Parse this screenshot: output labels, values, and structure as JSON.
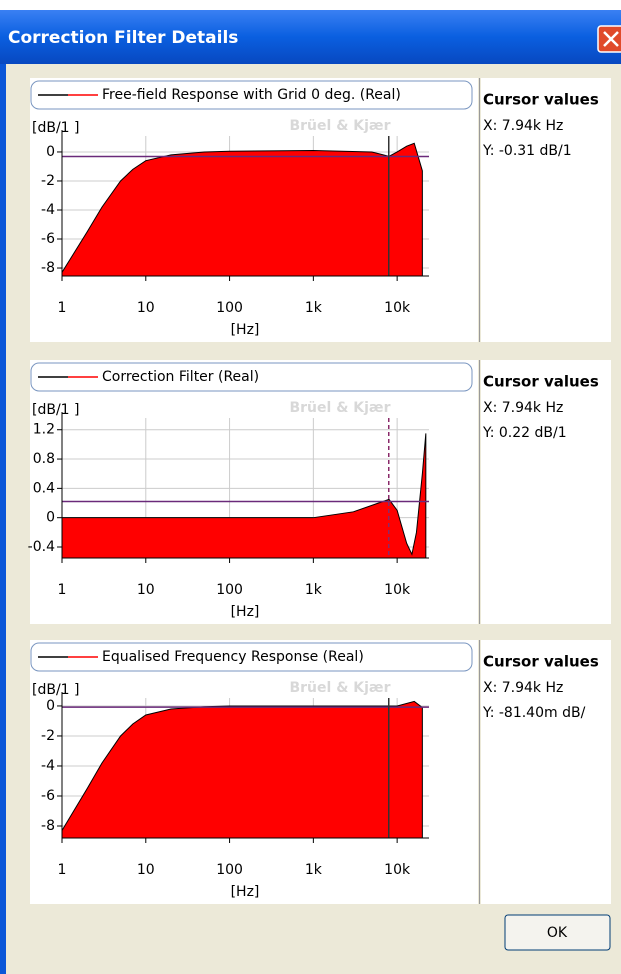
{
  "window": {
    "title": "Correction Filter Details",
    "ok_button": "OK"
  },
  "chart_data": [
    {
      "type": "area",
      "series": [
        {
          "name": "Free-field Response with Grid 0 deg. (Real)",
          "color": "#ff0000",
          "x": [
            1,
            2,
            3,
            5,
            7,
            10,
            20,
            50,
            100,
            1000,
            5000,
            8000,
            10000,
            13000,
            16000,
            20000
          ],
          "values": [
            -8.3,
            -5.5,
            -3.8,
            -2.0,
            -1.2,
            -0.6,
            -0.2,
            0,
            0.05,
            0.1,
            0,
            -0.3,
            0.0,
            0.4,
            0.6,
            -1.3
          ]
        }
      ],
      "ylabel": "[dB/1 ]",
      "xlabel": "[Hz]",
      "watermark": "Brüel & Kjær",
      "xscale": "log",
      "xlim": [
        1,
        24000
      ],
      "xticks": [
        1,
        10,
        100,
        {
          "value": 1000,
          "label": "1k"
        },
        {
          "value": 10000,
          "label": "10k"
        }
      ],
      "ylim": [
        -8.55,
        1.1
      ],
      "yticks": [
        0,
        -2,
        -4,
        -6,
        -8
      ],
      "grid": true,
      "cursor": {
        "x": 7940,
        "y": -0.31,
        "heading": "Cursor values",
        "x_label": "X: 7.94k Hz",
        "y_label": "Y: -0.31 dB/1"
      }
    },
    {
      "type": "area",
      "series": [
        {
          "name": "Correction Filter (Real)",
          "color": "#ff0000",
          "x": [
            1,
            10,
            100,
            1000,
            3000,
            6000,
            8000,
            10000,
            13000,
            15000,
            17000,
            20000,
            22000
          ],
          "values": [
            0,
            0,
            0,
            0,
            0.08,
            0.2,
            0.25,
            0.1,
            -0.35,
            -0.5,
            -0.2,
            0.6,
            1.15
          ]
        }
      ],
      "ylabel": "[dB/1 ]",
      "xlabel": "[Hz]",
      "watermark": "Brüel & Kjær",
      "xscale": "log",
      "xlim": [
        1,
        24000
      ],
      "xticks": [
        1,
        10,
        100,
        {
          "value": 1000,
          "label": "1k"
        },
        {
          "value": 10000,
          "label": "10k"
        }
      ],
      "ylim": [
        -0.55,
        1.36
      ],
      "yticks": [
        1.2,
        0.8,
        0.4,
        0,
        -0.4
      ],
      "grid": true,
      "cursor": {
        "x": 7940,
        "y": 0.22,
        "heading": "Cursor values",
        "x_label": "X: 7.94k Hz",
        "y_label": "Y: 0.22 dB/1"
      }
    },
    {
      "type": "area",
      "series": [
        {
          "name": "Equalised Frequency Response (Real)",
          "color": "#ff0000",
          "x": [
            1,
            2,
            3,
            5,
            7,
            10,
            20,
            50,
            100,
            1000,
            10000,
            16000,
            20000
          ],
          "values": [
            -8.3,
            -5.5,
            -3.8,
            -2.0,
            -1.2,
            -0.6,
            -0.2,
            -0.05,
            0,
            0,
            0,
            0.3,
            -0.1
          ]
        }
      ],
      "ylabel": "[dB/1 ]",
      "xlabel": "[Hz]",
      "watermark": "Brüel & Kjær",
      "xscale": "log",
      "xlim": [
        1,
        24000
      ],
      "xticks": [
        1,
        10,
        100,
        {
          "value": 1000,
          "label": "1k"
        },
        {
          "value": 10000,
          "label": "10k"
        }
      ],
      "ylim": [
        -8.8,
        0.53
      ],
      "yticks": [
        0,
        -2,
        -4,
        -6,
        -8
      ],
      "grid": true,
      "cursor": {
        "x": 7940,
        "y": -0.0814,
        "heading": "Cursor values",
        "x_label": "X: 7.94k Hz",
        "y_label": "Y: -81.40m dB/"
      }
    }
  ]
}
